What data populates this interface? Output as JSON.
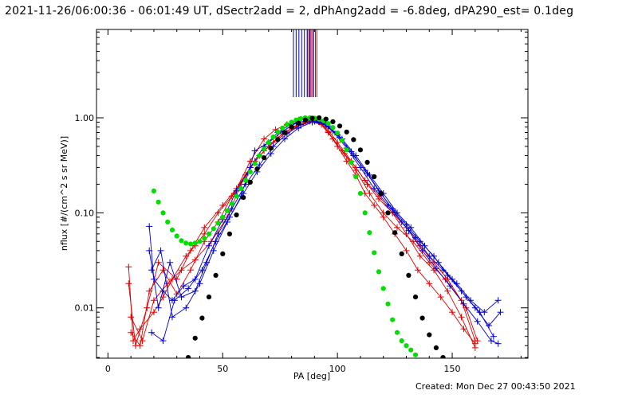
{
  "title": "2021-11-26/06:00:36 - 06:01:49 UT, dSectr2add = 2, dPhAng2add = -6.8deg, dPA290_est=  0.1deg",
  "footer": "Created: Mon Dec 27 00:43:50 2021",
  "chart_data": {
    "type": "scatter",
    "xlabel": "PA [deg]",
    "ylabel": "nflux [#/(cm^2 s sr MeV)]",
    "xlim": [
      -5,
      183
    ],
    "ylim_log10": [
      -2.53,
      0.93
    ],
    "yscale": "log",
    "x_ticks": [
      0,
      50,
      100,
      150
    ],
    "x_tick_labels": [
      "0",
      "50",
      "100",
      "150"
    ],
    "y_ticks": [
      0.01,
      0.1,
      1.0
    ],
    "y_tick_labels": [
      "0.01",
      "0.10",
      "1.00"
    ],
    "grid": false,
    "colors": {
      "red": "#e00000",
      "blue": "#0000d0",
      "green": "#00e000",
      "black": "#000000"
    },
    "vertical_markers": {
      "red_x": [
        87.0,
        87.6,
        88.2,
        88.8,
        89.6,
        90.4,
        91.0
      ],
      "blue_x": [
        80.8,
        82.0,
        83.2,
        84.4,
        85.6,
        86.8,
        88.0,
        89.4
      ]
    },
    "series": [
      {
        "color": "red",
        "marker": "plus",
        "x": [
          9,
          11,
          14,
          20,
          24,
          28,
          34,
          38,
          42,
          48,
          55,
          62,
          68,
          73,
          78,
          83,
          88,
          92,
          96,
          100,
          104,
          108,
          112,
          116,
          120,
          125,
          130,
          135,
          140,
          145,
          150,
          155,
          160
        ],
        "y": [
          0.027,
          0.0045,
          0.006,
          0.009,
          0.013,
          0.02,
          0.035,
          0.045,
          0.06,
          0.1,
          0.16,
          0.35,
          0.6,
          0.75,
          0.85,
          0.95,
          0.98,
          0.9,
          0.72,
          0.5,
          0.35,
          0.25,
          0.16,
          0.12,
          0.09,
          0.06,
          0.04,
          0.025,
          0.018,
          0.013,
          0.009,
          0.006,
          0.0042
        ]
      },
      {
        "color": "red",
        "marker": "plus",
        "x": [
          10,
          15,
          20,
          26,
          32,
          38,
          45,
          52,
          58,
          64,
          70,
          76,
          82,
          88,
          93,
          98,
          103,
          108,
          113,
          118,
          124,
          130,
          136,
          142,
          148,
          154,
          160
        ],
        "y": [
          0.008,
          0.0045,
          0.012,
          0.018,
          0.025,
          0.032,
          0.05,
          0.09,
          0.2,
          0.35,
          0.5,
          0.68,
          0.82,
          0.92,
          0.85,
          0.6,
          0.42,
          0.3,
          0.2,
          0.14,
          0.1,
          0.06,
          0.035,
          0.025,
          0.015,
          0.008,
          0.0038
        ]
      },
      {
        "color": "red",
        "marker": "plus",
        "x": [
          9,
          12,
          17,
          22,
          30,
          36,
          42,
          50,
          56,
          62,
          68,
          74,
          80,
          86,
          91,
          96,
          102,
          108,
          114,
          120,
          126,
          133,
          140,
          147,
          154,
          160
        ],
        "y": [
          0.018,
          0.004,
          0.01,
          0.03,
          0.02,
          0.04,
          0.07,
          0.12,
          0.18,
          0.3,
          0.45,
          0.62,
          0.78,
          0.9,
          0.95,
          0.7,
          0.45,
          0.28,
          0.16,
          0.1,
          0.07,
          0.05,
          0.03,
          0.02,
          0.012,
          0.0045
        ]
      },
      {
        "color": "red",
        "marker": "plus",
        "x": [
          10,
          14,
          18,
          24,
          30,
          36,
          42,
          48,
          54,
          60,
          66,
          72,
          78,
          84,
          90,
          95,
          100,
          106,
          112,
          118,
          124,
          130,
          136,
          142,
          148,
          156,
          161
        ],
        "y": [
          0.0055,
          0.004,
          0.015,
          0.025,
          0.014,
          0.025,
          0.05,
          0.08,
          0.15,
          0.25,
          0.4,
          0.55,
          0.7,
          0.85,
          0.92,
          0.8,
          0.55,
          0.35,
          0.22,
          0.15,
          0.1,
          0.07,
          0.045,
          0.03,
          0.02,
          0.01,
          0.0045
        ]
      },
      {
        "color": "blue",
        "marker": "plus",
        "x": [
          18,
          20,
          24,
          28,
          33,
          38,
          44,
          50,
          56,
          62,
          68,
          74,
          80,
          86,
          92,
          98,
          104,
          110,
          116,
          122,
          128,
          134,
          140,
          146,
          152,
          158,
          164,
          170
        ],
        "y": [
          0.072,
          0.02,
          0.015,
          0.012,
          0.017,
          0.02,
          0.045,
          0.085,
          0.17,
          0.3,
          0.5,
          0.7,
          0.86,
          0.97,
          0.93,
          0.72,
          0.48,
          0.3,
          0.18,
          0.12,
          0.08,
          0.055,
          0.035,
          0.025,
          0.018,
          0.012,
          0.009,
          0.012
        ]
      },
      {
        "color": "blue",
        "marker": "plus",
        "x": [
          18,
          22,
          27,
          32,
          38,
          43,
          48,
          54,
          60,
          66,
          72,
          78,
          84,
          90,
          96,
          102,
          108,
          114,
          120,
          126,
          132,
          138,
          144,
          150,
          156,
          162,
          168
        ],
        "y": [
          0.04,
          0.01,
          0.03,
          0.013,
          0.015,
          0.03,
          0.06,
          0.11,
          0.2,
          0.32,
          0.5,
          0.68,
          0.84,
          0.92,
          0.82,
          0.6,
          0.4,
          0.25,
          0.16,
          0.1,
          0.07,
          0.045,
          0.03,
          0.02,
          0.013,
          0.009,
          0.005
        ]
      },
      {
        "color": "blue",
        "marker": "plus",
        "x": [
          19,
          23,
          28,
          34,
          40,
          46,
          52,
          58,
          64,
          70,
          76,
          82,
          88,
          94,
          100,
          106,
          112,
          118,
          124,
          130,
          136,
          142,
          148,
          154,
          160,
          166,
          171
        ],
        "y": [
          0.025,
          0.04,
          0.008,
          0.01,
          0.018,
          0.04,
          0.08,
          0.15,
          0.45,
          0.55,
          0.72,
          0.88,
          0.95,
          0.88,
          0.66,
          0.44,
          0.28,
          0.17,
          0.11,
          0.075,
          0.05,
          0.035,
          0.022,
          0.015,
          0.01,
          0.0065,
          0.009
        ]
      },
      {
        "color": "blue",
        "marker": "plus",
        "x": [
          19,
          24,
          29,
          35,
          41,
          47,
          53,
          59,
          65,
          71,
          77,
          83,
          89,
          95,
          101,
          107,
          113,
          119,
          125,
          131,
          137,
          143,
          149,
          155,
          161,
          167,
          170
        ],
        "y": [
          0.0055,
          0.0045,
          0.012,
          0.016,
          0.025,
          0.05,
          0.09,
          0.16,
          0.27,
          0.42,
          0.6,
          0.78,
          0.9,
          0.85,
          0.62,
          0.4,
          0.26,
          0.16,
          0.1,
          0.065,
          0.04,
          0.026,
          0.017,
          0.011,
          0.0072,
          0.0045,
          0.0042
        ]
      }
    ],
    "fits": [
      {
        "name": "",
        "color": "green",
        "x": [
          20,
          22,
          24,
          26,
          28,
          30,
          32,
          34,
          36,
          38,
          40,
          42,
          44,
          46,
          48,
          50,
          52,
          54,
          56,
          58,
          60,
          62,
          64,
          66,
          68,
          70,
          72,
          74,
          76,
          78,
          80,
          82,
          84,
          86,
          88,
          90,
          92,
          94,
          96,
          98,
          100,
          102,
          104,
          106,
          108,
          110,
          112,
          114,
          116,
          118,
          120,
          122,
          124,
          126,
          128,
          130,
          132,
          134
        ],
        "y": [
          0.17,
          0.13,
          0.1,
          0.08,
          0.066,
          0.057,
          0.051,
          0.048,
          0.047,
          0.048,
          0.05,
          0.054,
          0.06,
          0.068,
          0.078,
          0.09,
          0.105,
          0.125,
          0.15,
          0.18,
          0.22,
          0.27,
          0.33,
          0.4,
          0.47,
          0.55,
          0.63,
          0.71,
          0.78,
          0.85,
          0.9,
          0.95,
          0.98,
          1.0,
          1.0,
          0.99,
          0.97,
          0.93,
          0.87,
          0.79,
          0.69,
          0.58,
          0.46,
          0.34,
          0.24,
          0.16,
          0.1,
          0.062,
          0.038,
          0.024,
          0.016,
          0.011,
          0.0075,
          0.0055,
          0.0045,
          0.004,
          0.0036,
          0.0032
        ]
      },
      {
        "name": "",
        "color": "black",
        "x": [
          35,
          38,
          41,
          44,
          47,
          50,
          53,
          56,
          59,
          62,
          65,
          68,
          71,
          74,
          77,
          80,
          83,
          86,
          89,
          92,
          95,
          98,
          101,
          104,
          107,
          110,
          113,
          116,
          119,
          122,
          125,
          128,
          131,
          134,
          137,
          140,
          143,
          146
        ],
        "y": [
          0.003,
          0.0048,
          0.0078,
          0.013,
          0.022,
          0.037,
          0.06,
          0.095,
          0.145,
          0.21,
          0.29,
          0.38,
          0.48,
          0.59,
          0.7,
          0.8,
          0.88,
          0.95,
          0.99,
          1.0,
          0.97,
          0.91,
          0.82,
          0.71,
          0.59,
          0.46,
          0.34,
          0.24,
          0.16,
          0.1,
          0.062,
          0.037,
          0.022,
          0.013,
          0.0078,
          0.0052,
          0.0038,
          0.003
        ]
      }
    ]
  }
}
